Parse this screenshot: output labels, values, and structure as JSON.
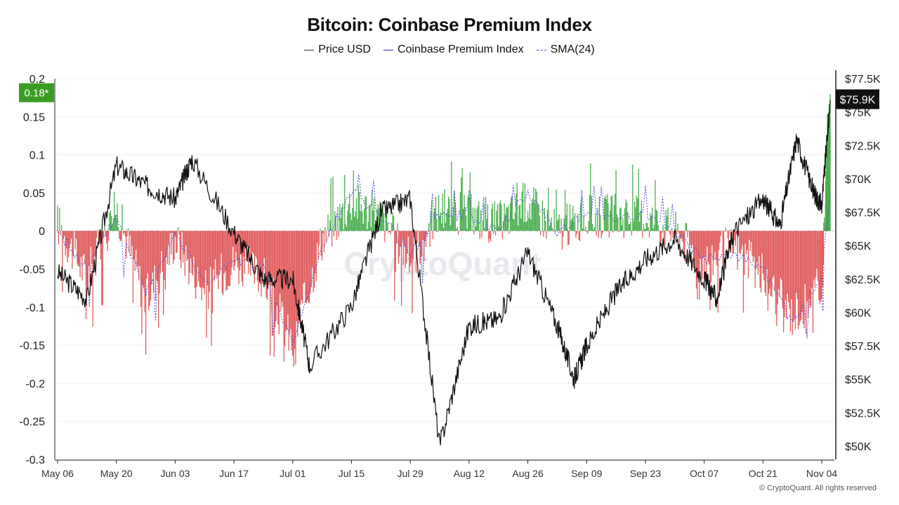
{
  "title": "Bitcoin: Coinbase Premium Index",
  "legend": [
    {
      "label": "Price USD",
      "color": "#333333",
      "style": "solid"
    },
    {
      "label": "Coinbase Premium Index",
      "color": "#1f1fd1",
      "style": "solid"
    },
    {
      "label": "SMA(24)",
      "color": "#4a4ad9",
      "style": "dashed"
    }
  ],
  "badges": {
    "premium_current": "0.18*",
    "price_current": "$75.9K",
    "premium_badge_color": "#3a9d23",
    "price_badge_color": "#111111"
  },
  "watermark": "CryptoQuant",
  "footer": "© CryptoQuant. All rights reserved",
  "colors": {
    "positive_premium": "#4caf50",
    "negative_premium": "#e05c5c",
    "price_line": "#111111",
    "sma_line": "#4a4ad9",
    "zero_line": "#b8c0cc"
  },
  "chart_data": {
    "type": "line",
    "x_tick_labels": [
      "May 06",
      "May 20",
      "Jun 03",
      "Jun 17",
      "Jul 01",
      "Jul 15",
      "Jul 29",
      "Aug 12",
      "Aug 26",
      "Sep 09",
      "Sep 23",
      "Oct 07",
      "Oct 21",
      "Nov 04"
    ],
    "y_left": {
      "label": "",
      "ticks": [
        "0.2",
        "0.15",
        "0.1",
        "0.05",
        "0",
        "-0.05",
        "-0.1",
        "-0.15",
        "-0.2",
        "-0.25",
        "-0.3"
      ],
      "range": [
        -0.3,
        0.2
      ]
    },
    "y_right": {
      "label": "",
      "ticks": [
        "$77.5K",
        "$75K",
        "$72.5K",
        "$70K",
        "$67.5K",
        "$65K",
        "$62.5K",
        "$60K",
        "$57.5K",
        "$55K",
        "$52.5K",
        "$50K"
      ],
      "range": [
        49000,
        77500
      ]
    },
    "series": [
      {
        "name": "Price USD",
        "axis": "right",
        "x": [
          "May 06",
          "May 13",
          "May 20",
          "May 27",
          "Jun 03",
          "Jun 07",
          "Jun 17",
          "Jun 24",
          "Jul 01",
          "Jul 05",
          "Jul 15",
          "Jul 22",
          "Jul 29",
          "Aug 05",
          "Aug 12",
          "Aug 19",
          "Aug 26",
          "Sep 02",
          "Sep 06",
          "Sep 09",
          "Sep 16",
          "Sep 23",
          "Sep 30",
          "Oct 07",
          "Oct 10",
          "Oct 14",
          "Oct 21",
          "Oct 25",
          "Oct 29",
          "Nov 02",
          "Nov 04",
          "Nov 06"
        ],
        "values": [
          63000,
          61000,
          71000,
          69500,
          68500,
          71500,
          66000,
          62500,
          62500,
          56000,
          60500,
          67500,
          68500,
          50000,
          59000,
          59500,
          64500,
          59000,
          55000,
          57500,
          61500,
          64000,
          65500,
          62500,
          61000,
          66000,
          68500,
          66500,
          73000,
          69000,
          68000,
          75900
        ]
      },
      {
        "name": "Coinbase Premium Index",
        "axis": "left",
        "x": [
          "May 06",
          "May 13",
          "May 20",
          "May 27",
          "Jun 03",
          "Jun 10",
          "Jun 17",
          "Jun 24",
          "Jul 01",
          "Jul 08",
          "Jul 15",
          "Jul 22",
          "Jul 29",
          "Aug 05",
          "Aug 12",
          "Aug 19",
          "Aug 26",
          "Sep 02",
          "Sep 09",
          "Sep 16",
          "Sep 23",
          "Sep 30",
          "Oct 07",
          "Oct 14",
          "Oct 21",
          "Oct 28",
          "Nov 04",
          "Nov 06"
        ],
        "values": [
          0.01,
          -0.06,
          0.03,
          -0.09,
          -0.01,
          -0.08,
          -0.04,
          -0.06,
          -0.15,
          -0.01,
          0.04,
          0.02,
          -0.04,
          0.03,
          0.02,
          0.01,
          0.04,
          0.0,
          0.02,
          0.02,
          0.02,
          0.0,
          -0.04,
          -0.02,
          -0.06,
          -0.11,
          -0.07,
          0.18
        ]
      },
      {
        "name": "SMA(24)",
        "axis": "left",
        "x": [
          "May 06",
          "May 13",
          "May 20",
          "May 27",
          "Jun 03",
          "Jun 10",
          "Jun 17",
          "Jun 24",
          "Jul 01",
          "Jul 08",
          "Jul 15",
          "Jul 22",
          "Jul 29",
          "Aug 05",
          "Aug 12",
          "Aug 19",
          "Aug 26",
          "Sep 02",
          "Sep 09",
          "Sep 16",
          "Sep 23",
          "Sep 30",
          "Oct 07",
          "Oct 14",
          "Oct 21",
          "Oct 28",
          "Nov 04",
          "Nov 06"
        ],
        "values": [
          0.0,
          -0.05,
          0.02,
          -0.08,
          0.0,
          -0.07,
          -0.04,
          -0.05,
          -0.15,
          -0.02,
          0.05,
          0.02,
          -0.03,
          0.02,
          0.02,
          0.0,
          0.05,
          0.0,
          0.02,
          0.02,
          0.02,
          0.0,
          -0.04,
          -0.03,
          -0.05,
          -0.12,
          -0.06,
          0.05
        ]
      }
    ],
    "grid": true,
    "legend_position": "top-center"
  }
}
